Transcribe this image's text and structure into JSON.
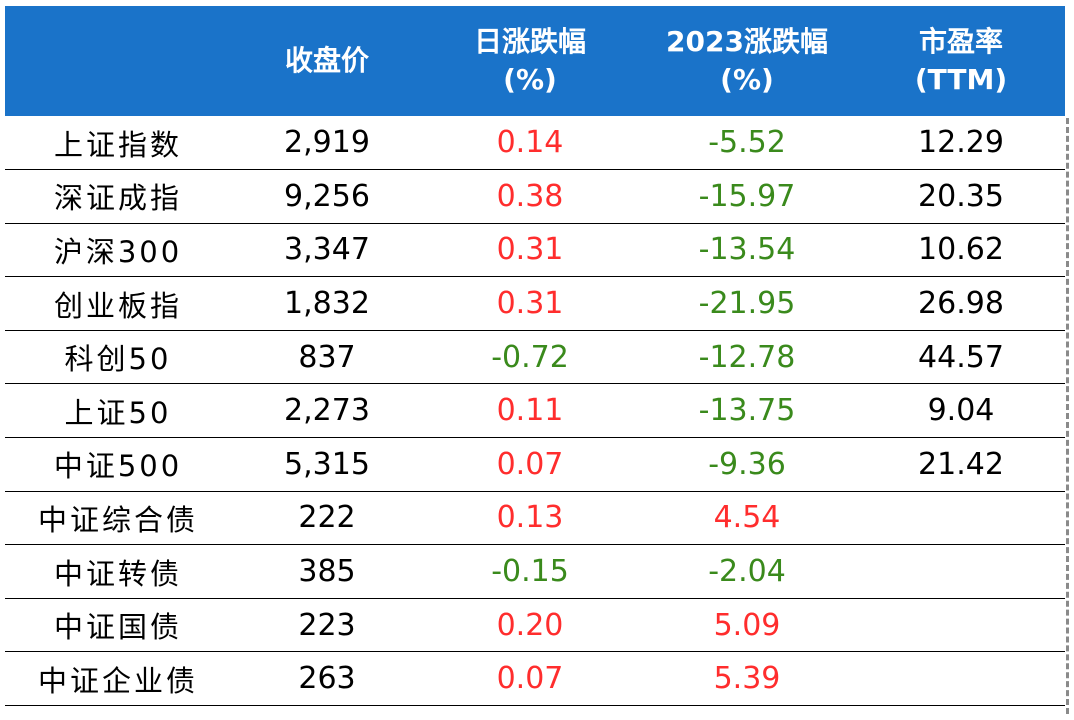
{
  "colors": {
    "header_bg": "#1a73c9",
    "header_text": "#ffffff",
    "up": "#ff2d2d",
    "down": "#3a8a1c",
    "text": "#000000"
  },
  "chart_data": {
    "type": "table",
    "columns": [
      {
        "line1": "",
        "line2": ""
      },
      {
        "line1": "收盘价",
        "line2": ""
      },
      {
        "line1": "日涨跌幅",
        "line2": "(%)"
      },
      {
        "line1": "2023涨跌幅",
        "line2": "(%)"
      },
      {
        "line1": "市盈率",
        "line2": "(TTM)"
      }
    ],
    "rows": [
      {
        "name": "上证指数",
        "close": "2,919",
        "daily": "0.14",
        "ytd": "-5.52",
        "pe": "12.29"
      },
      {
        "name": "深证成指",
        "close": "9,256",
        "daily": "0.38",
        "ytd": "-15.97",
        "pe": "20.35"
      },
      {
        "name": "沪深300",
        "close": "3,347",
        "daily": "0.31",
        "ytd": "-13.54",
        "pe": "10.62"
      },
      {
        "name": "创业板指",
        "close": "1,832",
        "daily": "0.31",
        "ytd": "-21.95",
        "pe": "26.98"
      },
      {
        "name": "科创50",
        "close": "837",
        "daily": "-0.72",
        "ytd": "-12.78",
        "pe": "44.57"
      },
      {
        "name": "上证50",
        "close": "2,273",
        "daily": "0.11",
        "ytd": "-13.75",
        "pe": "9.04"
      },
      {
        "name": "中证500",
        "close": "5,315",
        "daily": "0.07",
        "ytd": "-9.36",
        "pe": "21.42"
      },
      {
        "name": "中证综合债",
        "close": "222",
        "daily": "0.13",
        "ytd": "4.54",
        "pe": ""
      },
      {
        "name": "中证转债",
        "close": "385",
        "daily": "-0.15",
        "ytd": "-2.04",
        "pe": ""
      },
      {
        "name": "中证国债",
        "close": "223",
        "daily": "0.20",
        "ytd": "5.09",
        "pe": ""
      },
      {
        "name": "中证企业债",
        "close": "263",
        "daily": "0.07",
        "ytd": "5.39",
        "pe": ""
      }
    ]
  }
}
